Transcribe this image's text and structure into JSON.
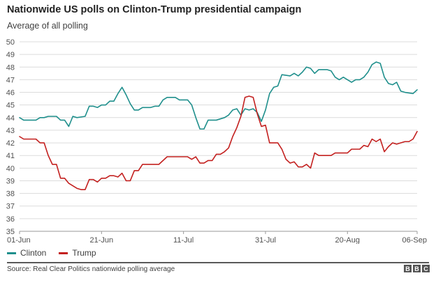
{
  "header": {
    "title": "Nationwide US polls on Clinton-Trump presidential campaign",
    "subtitle": "Average of all polling"
  },
  "footer": {
    "source": "Source: Real Clear Politics nationwide polling average",
    "logo_letters": [
      "B",
      "B",
      "C"
    ]
  },
  "chart_data": {
    "type": "line",
    "title": "Nationwide US polls on Clinton-Trump presidential campaign",
    "subtitle": "Average of all polling",
    "xlabel": "",
    "ylabel": "",
    "ylim": [
      35,
      50
    ],
    "yticks": [
      35,
      36,
      37,
      38,
      39,
      40,
      41,
      42,
      43,
      44,
      45,
      46,
      47,
      48,
      49,
      50
    ],
    "xlim": [
      0,
      97
    ],
    "xtick_labels": [
      {
        "day": 0,
        "label": "01-Jun"
      },
      {
        "day": 20,
        "label": "21-Jun"
      },
      {
        "day": 40,
        "label": "11-Jul"
      },
      {
        "day": 60,
        "label": "31-Jul"
      },
      {
        "day": 80,
        "label": "20-Aug"
      },
      {
        "day": 97,
        "label": "06-Sep"
      }
    ],
    "grid": true,
    "legend": "bottom-left",
    "series": [
      {
        "name": "Clinton",
        "color": "#1f8f8c",
        "points": [
          [
            0,
            44.0
          ],
          [
            1,
            43.8
          ],
          [
            4,
            43.8
          ],
          [
            5,
            44.0
          ],
          [
            6,
            44.0
          ],
          [
            7,
            44.1
          ],
          [
            9,
            44.1
          ],
          [
            10,
            43.8
          ],
          [
            11,
            43.8
          ],
          [
            12,
            43.3
          ],
          [
            13,
            44.1
          ],
          [
            14,
            44.0
          ],
          [
            16,
            44.1
          ],
          [
            17,
            44.9
          ],
          [
            18,
            44.9
          ],
          [
            19,
            44.8
          ],
          [
            20,
            45.0
          ],
          [
            21,
            45.0
          ],
          [
            22,
            45.3
          ],
          [
            23,
            45.3
          ],
          [
            24,
            45.9
          ],
          [
            25,
            46.4
          ],
          [
            26,
            45.8
          ],
          [
            27,
            45.1
          ],
          [
            28,
            44.6
          ],
          [
            29,
            44.6
          ],
          [
            30,
            44.8
          ],
          [
            32,
            44.8
          ],
          [
            33,
            44.9
          ],
          [
            34,
            44.9
          ],
          [
            35,
            45.4
          ],
          [
            36,
            45.6
          ],
          [
            38,
            45.6
          ],
          [
            39,
            45.4
          ],
          [
            41,
            45.4
          ],
          [
            42,
            45.0
          ],
          [
            43,
            44.0
          ],
          [
            44,
            43.1
          ],
          [
            45,
            43.1
          ],
          [
            46,
            43.8
          ],
          [
            48,
            43.8
          ],
          [
            50,
            44.0
          ],
          [
            51,
            44.2
          ],
          [
            52,
            44.6
          ],
          [
            53,
            44.7
          ],
          [
            54,
            44.2
          ],
          [
            55,
            44.7
          ],
          [
            56,
            44.6
          ],
          [
            57,
            44.7
          ],
          [
            58,
            44.4
          ],
          [
            59,
            43.7
          ],
          [
            60,
            44.6
          ],
          [
            61,
            45.9
          ],
          [
            62,
            46.4
          ],
          [
            63,
            46.5
          ],
          [
            64,
            47.4
          ],
          [
            66,
            47.3
          ],
          [
            67,
            47.5
          ],
          [
            68,
            47.3
          ],
          [
            69,
            47.6
          ],
          [
            70,
            48.0
          ],
          [
            71,
            47.9
          ],
          [
            72,
            47.5
          ],
          [
            73,
            47.8
          ],
          [
            75,
            47.8
          ],
          [
            76,
            47.7
          ],
          [
            77,
            47.2
          ],
          [
            78,
            47.0
          ],
          [
            79,
            47.2
          ],
          [
            80,
            47.0
          ],
          [
            81,
            46.8
          ],
          [
            82,
            47.0
          ],
          [
            83,
            47.0
          ],
          [
            84,
            47.2
          ],
          [
            85,
            47.6
          ],
          [
            86,
            48.2
          ],
          [
            87,
            48.4
          ],
          [
            88,
            48.3
          ],
          [
            89,
            47.2
          ],
          [
            90,
            46.7
          ],
          [
            91,
            46.6
          ],
          [
            92,
            46.8
          ],
          [
            93,
            46.1
          ],
          [
            94,
            46.0
          ],
          [
            96,
            45.9
          ],
          [
            97,
            46.2
          ]
        ]
      },
      {
        "name": "Trump",
        "color": "#c3201f",
        "points": [
          [
            0,
            42.5
          ],
          [
            1,
            42.3
          ],
          [
            4,
            42.3
          ],
          [
            5,
            42.0
          ],
          [
            6,
            42.0
          ],
          [
            7,
            41.0
          ],
          [
            8,
            40.3
          ],
          [
            9,
            40.3
          ],
          [
            10,
            39.2
          ],
          [
            11,
            39.2
          ],
          [
            12,
            38.8
          ],
          [
            13,
            38.6
          ],
          [
            14,
            38.4
          ],
          [
            15,
            38.3
          ],
          [
            16,
            38.3
          ],
          [
            17,
            39.1
          ],
          [
            18,
            39.1
          ],
          [
            19,
            38.9
          ],
          [
            20,
            39.2
          ],
          [
            21,
            39.2
          ],
          [
            22,
            39.4
          ],
          [
            23,
            39.4
          ],
          [
            24,
            39.3
          ],
          [
            25,
            39.6
          ],
          [
            26,
            39.0
          ],
          [
            27,
            39.0
          ],
          [
            28,
            39.8
          ],
          [
            29,
            39.8
          ],
          [
            30,
            40.3
          ],
          [
            34,
            40.3
          ],
          [
            36,
            40.9
          ],
          [
            41,
            40.9
          ],
          [
            42,
            40.7
          ],
          [
            43,
            40.9
          ],
          [
            44,
            40.4
          ],
          [
            45,
            40.4
          ],
          [
            46,
            40.6
          ],
          [
            47,
            40.6
          ],
          [
            48,
            41.1
          ],
          [
            49,
            41.1
          ],
          [
            50,
            41.3
          ],
          [
            51,
            41.6
          ],
          [
            52,
            42.5
          ],
          [
            53,
            43.2
          ],
          [
            54,
            44.1
          ],
          [
            55,
            45.6
          ],
          [
            56,
            45.7
          ],
          [
            57,
            45.6
          ],
          [
            58,
            44.3
          ],
          [
            59,
            43.3
          ],
          [
            60,
            43.4
          ],
          [
            61,
            42.0
          ],
          [
            63,
            42.0
          ],
          [
            64,
            41.5
          ],
          [
            65,
            40.7
          ],
          [
            66,
            40.4
          ],
          [
            67,
            40.5
          ],
          [
            68,
            40.1
          ],
          [
            69,
            40.1
          ],
          [
            70,
            40.3
          ],
          [
            71,
            40.0
          ],
          [
            72,
            41.2
          ],
          [
            73,
            41.0
          ],
          [
            76,
            41.0
          ],
          [
            77,
            41.2
          ],
          [
            80,
            41.2
          ],
          [
            81,
            41.5
          ],
          [
            83,
            41.5
          ],
          [
            84,
            41.8
          ],
          [
            85,
            41.7
          ],
          [
            86,
            42.3
          ],
          [
            87,
            42.1
          ],
          [
            88,
            42.3
          ],
          [
            89,
            41.3
          ],
          [
            90,
            41.7
          ],
          [
            91,
            42.0
          ],
          [
            92,
            41.9
          ],
          [
            94,
            42.1
          ],
          [
            95,
            42.1
          ],
          [
            96,
            42.3
          ],
          [
            97,
            42.9
          ]
        ]
      }
    ]
  }
}
